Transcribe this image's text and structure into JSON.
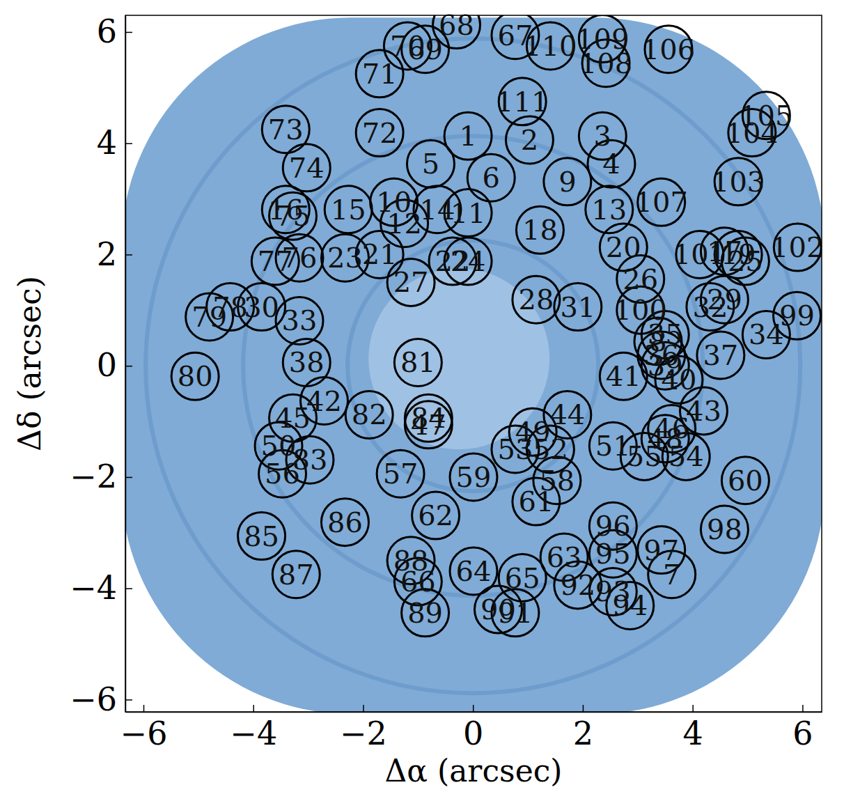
{
  "chart_data": {
    "type": "scatter",
    "xlabel": "Δα (arcsec)",
    "ylabel": "Δδ (arcsec)",
    "marker": "circle",
    "color": "#000000",
    "xlim": [
      -6.33,
      6.35
    ],
    "ylim": [
      -6.22,
      6.3
    ],
    "xticks": [
      {
        "value": -6,
        "label": "−6"
      },
      {
        "value": -4,
        "label": "−4"
      },
      {
        "value": -2,
        "label": "−2"
      },
      0,
      2,
      4,
      6
    ],
    "yticks": [
      {
        "value": -6,
        "label": "−6"
      },
      {
        "value": -4,
        "label": "−4"
      },
      {
        "value": -2,
        "label": "−2"
      },
      0,
      2,
      4,
      6
    ],
    "labels": [
      "1",
      "2",
      "3",
      "4",
      "5",
      "6",
      "7",
      "8",
      "9",
      "10",
      "11",
      "12",
      "13",
      "14",
      "15",
      "16",
      "17",
      "18",
      "19",
      "20",
      "21",
      "22",
      "23",
      "24",
      "25",
      "26",
      "27",
      "28",
      "29",
      "30",
      "31",
      "32",
      "33",
      "34",
      "35",
      "36",
      "37",
      "38",
      "39",
      "40",
      "41",
      "42",
      "43",
      "44",
      "45",
      "46",
      "47",
      "48",
      "49",
      "50",
      "51",
      "52",
      "53",
      "54",
      "55",
      "56",
      "57",
      "58",
      "59",
      "60",
      "61",
      "62",
      "63",
      "64",
      "65",
      "66",
      "67",
      "68",
      "69",
      "70",
      "71",
      "72",
      "73",
      "74",
      "75",
      "76",
      "77",
      "78",
      "79",
      "80",
      "81",
      "82",
      "83",
      "84",
      "85",
      "86",
      "87",
      "88",
      "89",
      "90",
      "91",
      "92",
      "93",
      "94",
      "95",
      "96",
      "97",
      "98",
      "99",
      "100",
      "101",
      "102",
      "103",
      "104",
      "105",
      "106",
      "107",
      "108",
      "109",
      "110",
      "111"
    ],
    "x": [
      -0.09,
      1.03,
      2.36,
      2.52,
      -0.77,
      0.33,
      3.62,
      3.37,
      1.72,
      -1.44,
      -0.09,
      -1.25,
      2.48,
      -0.65,
      -2.27,
      -3.41,
      4.58,
      1.22,
      4.83,
      2.74,
      -1.7,
      -0.37,
      -2.33,
      -0.09,
      4.96,
      3.05,
      -1.13,
      1.15,
      4.58,
      -3.85,
      1.91,
      4.32,
      -3.16,
      5.34,
      3.5,
      3.43,
      4.51,
      -3.03,
      3.5,
      3.75,
      2.74,
      -2.71,
      4.2,
      1.72,
      -3.28,
      3.62,
      -0.81,
      3.5,
      1.09,
      -3.54,
      2.55,
      1.41,
      0.77,
      3.88,
      3.12,
      -3.47,
      -1.32,
      1.53,
      0.01,
      4.96,
      1.15,
      -0.68,
      1.66,
      0.01,
      0.9,
      -1.0,
      0.77,
      -0.3,
      -0.87,
      -1.19,
      -1.7,
      -1.7,
      -3.41,
      -3.03,
      -3.28,
      -3.16,
      -3.6,
      -4.42,
      -4.8,
      -5.06,
      -1.0,
      -1.89,
      -2.97,
      -0.81,
      -3.85,
      -2.33,
      -3.22,
      -1.13,
      -0.87,
      0.46,
      0.77,
      1.91,
      2.55,
      2.86,
      2.55,
      2.55,
      3.43,
      4.58,
      5.9,
      3.05,
      4.13,
      5.91,
      4.83,
      5.08,
      5.34,
      3.56,
      3.43,
      2.42,
      2.36,
      1.41,
      0.9
    ],
    "y": [
      4.13,
      4.06,
      4.13,
      3.63,
      3.63,
      3.38,
      -3.75,
      0.44,
      3.31,
      2.94,
      2.75,
      2.56,
      2.81,
      2.81,
      2.81,
      2.81,
      2.06,
      2.44,
      2.0,
      2.13,
      2.0,
      1.88,
      1.94,
      1.88,
      1.88,
      1.56,
      1.5,
      1.19,
      1.19,
      1.06,
      1.06,
      1.06,
      0.81,
      0.56,
      0.56,
      0.19,
      0.19,
      0.06,
      0.0,
      -0.25,
      -0.19,
      -0.63,
      -0.81,
      -0.88,
      -0.94,
      -1.13,
      -1.06,
      -1.31,
      -1.19,
      -1.44,
      -1.44,
      -1.5,
      -1.5,
      -1.63,
      -1.63,
      -1.94,
      -1.94,
      -2.06,
      -2.0,
      -2.06,
      -2.44,
      -2.69,
      -3.44,
      -3.69,
      -3.81,
      -3.88,
      5.94,
      6.13,
      5.69,
      5.75,
      5.25,
      4.19,
      4.25,
      3.56,
      2.69,
      1.94,
      1.88,
      1.06,
      0.88,
      -0.19,
      0.06,
      -0.88,
      -1.69,
      -0.94,
      -3.06,
      -2.81,
      -3.75,
      -3.5,
      -4.44,
      -4.38,
      -4.44,
      -3.94,
      -4.06,
      -4.31,
      -3.38,
      -2.88,
      -3.31,
      -2.94,
      0.9,
      1.0,
      2.0,
      2.13,
      3.31,
      4.19,
      4.5,
      5.69,
      2.94,
      5.44,
      5.88,
      5.75,
      4.75
    ]
  }
}
